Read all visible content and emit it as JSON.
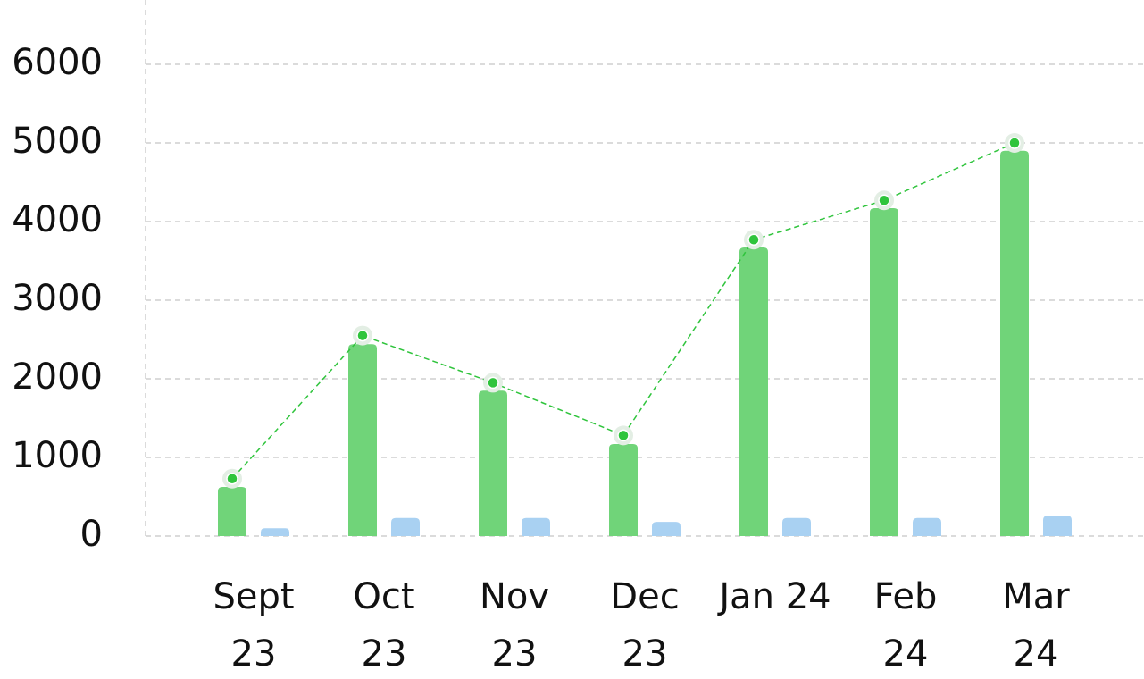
{
  "chart_data": {
    "type": "bar",
    "categories": [
      "Sept 23",
      "Oct 23",
      "Nov 23",
      "Dec 23",
      "Jan 24",
      "Feb 24",
      "Mar 24"
    ],
    "series": [
      {
        "type": "bar",
        "color": "#70d479",
        "values": [
          625,
          2440,
          1850,
          1170,
          3670,
          4170,
          4900
        ]
      },
      {
        "type": "bar",
        "color": "#a9d1f2",
        "values": [
          100,
          230,
          230,
          180,
          230,
          230,
          260
        ]
      },
      {
        "type": "line",
        "color": "#2fc43c",
        "values": [
          730,
          2550,
          1950,
          1280,
          3770,
          4270,
          5000
        ]
      }
    ],
    "ylim": [
      0,
      6000
    ],
    "yticks": [
      0,
      1000,
      2000,
      3000,
      4000,
      5000,
      6000
    ],
    "grid": true
  }
}
